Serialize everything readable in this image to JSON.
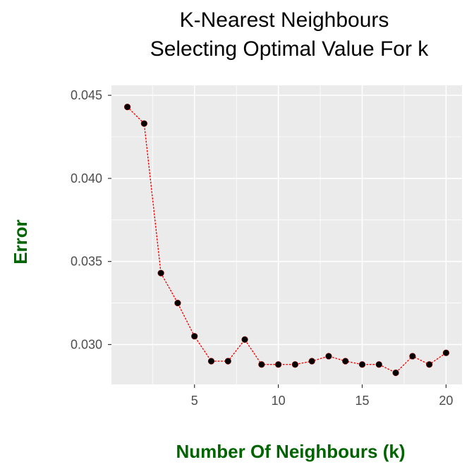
{
  "chart_data": {
    "type": "line",
    "title_lines": [
      "K-Nearest Neighbours",
      "Selecting Optimal Value For k"
    ],
    "xlabel": "Number Of Neighbours (k)",
    "ylabel": "Error",
    "x": [
      1,
      2,
      3,
      4,
      5,
      6,
      7,
      8,
      9,
      10,
      11,
      12,
      13,
      14,
      15,
      16,
      17,
      18,
      19,
      20
    ],
    "y": [
      0.0443,
      0.0433,
      0.0343,
      0.0325,
      0.0305,
      0.029,
      0.029,
      0.0303,
      0.0288,
      0.0288,
      0.0288,
      0.029,
      0.0293,
      0.029,
      0.0288,
      0.0288,
      0.0283,
      0.0293,
      0.0288,
      0.0295
    ],
    "xlim": [
      0.05,
      20.95
    ],
    "ylim": [
      0.0276,
      0.0456
    ],
    "x_ticks": [
      5,
      10,
      15,
      20
    ],
    "x_tick_labels": [
      "5",
      "10",
      "15",
      "20"
    ],
    "y_ticks": [
      0.03,
      0.035,
      0.04,
      0.045
    ],
    "y_tick_labels": [
      "0.030",
      "0.035",
      "0.040",
      "0.045"
    ],
    "grid": true,
    "line_style": "dotted",
    "colors": {
      "panel_background": "#ebebeb",
      "grid_line": "#ffffff",
      "line": "#ff0000",
      "point": "#000000",
      "axis_label": "#006400",
      "tick_label": "#4d4d4d"
    }
  }
}
